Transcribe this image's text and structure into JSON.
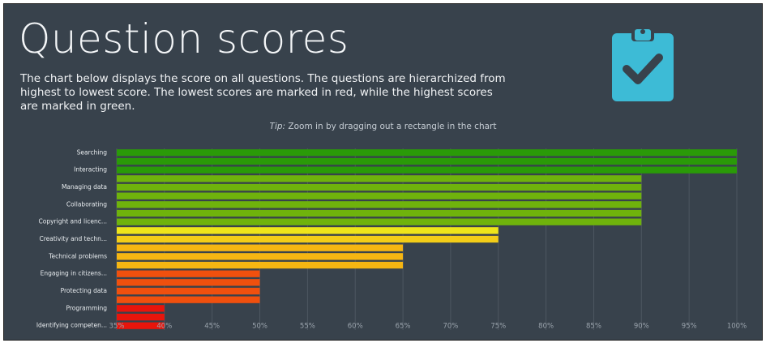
{
  "title": "Question scores",
  "description": "The chart below displays the score on all questions. The questions are hierarchized from highest to lowest score. The lowest scores are marked in red, while the highest scores are marked in green.",
  "tip_label": "Tip:",
  "tip_text": "Zoom in by dragging out a rectangle in the chart",
  "chart_data": {
    "type": "bar",
    "orientation": "horizontal",
    "categories": [
      "Searching",
      null,
      "Interacting",
      null,
      "Managing data",
      null,
      "Collaborating",
      null,
      "Copyright and licenc...",
      null,
      "Creativity and techn...",
      null,
      "Technical problems",
      null,
      "Engaging in citizens...",
      null,
      "Protecting data",
      null,
      "Programming",
      null,
      "Identifying competen..."
    ],
    "values": [
      100,
      100,
      100,
      90,
      90,
      90,
      90,
      90,
      90,
      75,
      75,
      65,
      65,
      65,
      50,
      50,
      50,
      50,
      40,
      40,
      40
    ],
    "colors": [
      "#2a9a08",
      "#2a9a08",
      "#2a9a08",
      "#6fb30c",
      "#6fb30c",
      "#6fb30c",
      "#6fb30c",
      "#6fb30c",
      "#6fb30c",
      "#eee51a",
      "#f3cd18",
      "#f6b612",
      "#f6b612",
      "#f6b612",
      "#f0500e",
      "#f0500e",
      "#f0500e",
      "#f0500e",
      "#e8150c",
      "#e8150c",
      "#e8150c"
    ],
    "xlim": [
      35,
      100
    ],
    "xticks": [
      {
        "value": 35,
        "label": "35%"
      },
      {
        "value": 40,
        "label": "40%"
      },
      {
        "value": 45,
        "label": "45%"
      },
      {
        "value": 50,
        "label": "50%"
      },
      {
        "value": 55,
        "label": "55%"
      },
      {
        "value": 60,
        "label": "60%"
      },
      {
        "value": 65,
        "label": "65%"
      },
      {
        "value": 70,
        "label": "70%"
      },
      {
        "value": 75,
        "label": "75%"
      },
      {
        "value": 80,
        "label": "80%"
      },
      {
        "value": 85,
        "label": "85%"
      },
      {
        "value": 90,
        "label": "90%"
      },
      {
        "value": 95,
        "label": "95%"
      },
      {
        "value": 100,
        "label": "100%"
      }
    ],
    "grid": true
  }
}
